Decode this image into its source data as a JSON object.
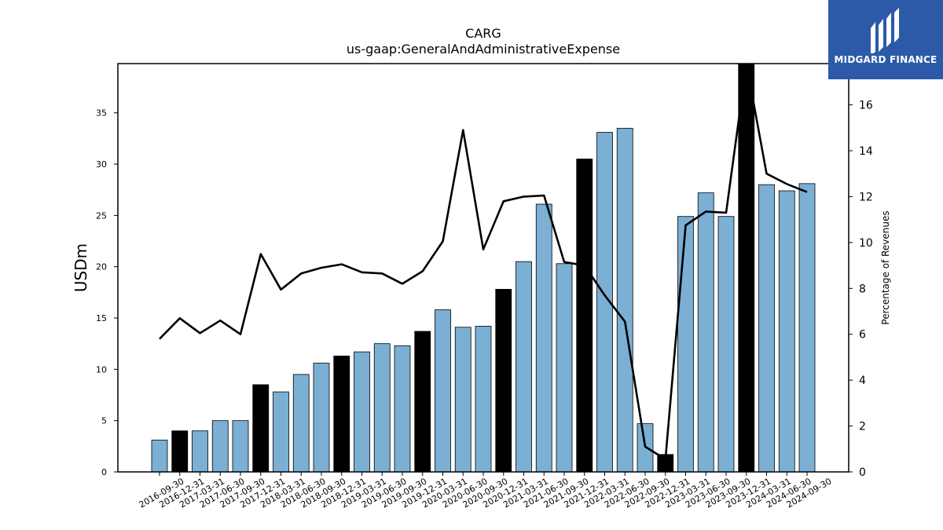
{
  "logo": {
    "text": "MIDGARD FINANCE",
    "color": "#2c5aa8"
  },
  "chart_data": {
    "type": "bar",
    "title": "CARG",
    "subtitle": "us-gaap:GeneralAndAdministrativeExpense",
    "ylabel": "USDm",
    "y2label": "Percentage of Revenues",
    "ylim": [
      0,
      39.8
    ],
    "y2lim": [
      0,
      17.8
    ],
    "yticks": [
      0,
      5,
      10,
      15,
      20,
      25,
      30,
      35
    ],
    "y2ticks": [
      0,
      2,
      4,
      6,
      8,
      10,
      12,
      14,
      16
    ],
    "grid": false,
    "bar_color": "#7bafd4",
    "highlight_color": "#000000",
    "line_color": "#000000",
    "categories": [
      "2016-09-30",
      "2016-12-31",
      "2017-03-31",
      "2017-06-30",
      "2017-09-30",
      "2017-12-31",
      "2018-03-31",
      "2018-06-30",
      "2018-09-30",
      "2018-12-31",
      "2019-03-31",
      "2019-06-30",
      "2019-09-30",
      "2019-12-31",
      "2020-03-31",
      "2020-06-30",
      "2020-09-30",
      "2020-12-31",
      "2021-03-31",
      "2021-06-30",
      "2021-09-30",
      "2021-12-31",
      "2022-03-31",
      "2022-06-30",
      "2022-09-30",
      "2022-12-31",
      "2023-03-31",
      "2023-06-30",
      "2023-09-30",
      "2023-12-31",
      "2024-03-31",
      "2024-06-30",
      "2024-09-30"
    ],
    "series": [
      {
        "type": "bar",
        "values": [
          3.1,
          4.0,
          4.0,
          5.0,
          5.0,
          8.5,
          7.8,
          9.5,
          10.6,
          11.3,
          11.7,
          12.5,
          12.3,
          13.7,
          15.8,
          14.1,
          14.2,
          17.8,
          20.5,
          26.1,
          20.3,
          30.5,
          33.1,
          33.5,
          4.7,
          1.7,
          24.9,
          27.2,
          24.9,
          39.8,
          28.0,
          27.4,
          28.1
        ],
        "highlight": [
          false,
          true,
          false,
          false,
          false,
          true,
          false,
          false,
          false,
          true,
          false,
          false,
          false,
          true,
          false,
          false,
          false,
          true,
          false,
          false,
          false,
          true,
          false,
          false,
          false,
          true,
          false,
          false,
          false,
          true,
          false,
          false,
          false
        ]
      },
      {
        "type": "line",
        "axis": "right",
        "values": [
          5.8,
          6.7,
          6.05,
          6.6,
          6.0,
          9.5,
          7.95,
          8.65,
          8.9,
          9.05,
          8.7,
          8.65,
          8.2,
          8.75,
          10.05,
          14.9,
          9.7,
          11.8,
          12.0,
          12.05,
          9.15,
          9.0,
          7.7,
          6.55,
          1.1,
          0.55,
          10.75,
          11.35,
          11.3,
          17.8,
          13.0,
          12.55,
          12.2
        ]
      }
    ]
  }
}
